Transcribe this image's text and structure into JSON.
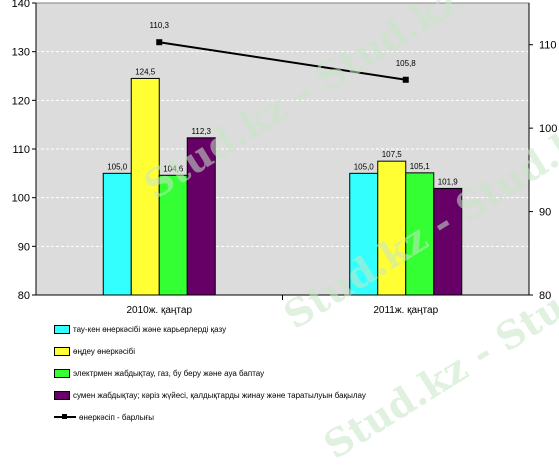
{
  "watermark": "Stud.kz - Stud.kz",
  "colors": {
    "plot_bg": "#dcdcdc",
    "grid": "#ffffff",
    "line": "#000000"
  },
  "chart_data": {
    "type": "bar",
    "title": "",
    "categories": [
      "2010ж. қаңтар",
      "2011ж. қаңтар"
    ],
    "ylim": [
      80,
      140
    ],
    "yticks": [
      "80",
      "90",
      "100",
      "110",
      "120",
      "130",
      "140"
    ],
    "y2lim": [
      80,
      115
    ],
    "y2ticks": [
      "80",
      "90",
      "100",
      "110"
    ],
    "grid": true,
    "legend_position": "bottom",
    "series": [
      {
        "name": "тау-кен өнеркәсібі және карьерлерді қазу",
        "color": "#33ffff",
        "values": [
          105.0,
          105.0
        ],
        "labels": [
          "105,0",
          "105,0"
        ]
      },
      {
        "name": "өңдеу өнеркәсібі",
        "color": "#ffff33",
        "values": [
          124.5,
          107.5
        ],
        "labels": [
          "124,5",
          "107,5"
        ]
      },
      {
        "name": "электрмен жабдықтау, газ, бу беру және ауа баптау",
        "color": "#33ff33",
        "values": [
          104.6,
          105.1
        ],
        "labels": [
          "104,6",
          "105,1"
        ]
      },
      {
        "name": "сумен жабдықтау; кәріз жүйесі, қалдықтарды жинау және таратылуын бақылау",
        "color": "#660066",
        "values": [
          112.3,
          101.9
        ],
        "labels": [
          "112,3",
          "101,9"
        ]
      }
    ],
    "line_series": {
      "name": "өнеркәсіп - барлығы",
      "axis": "secondary",
      "values": [
        110.3,
        105.8
      ],
      "labels": [
        "110,3",
        "105,8"
      ]
    }
  }
}
